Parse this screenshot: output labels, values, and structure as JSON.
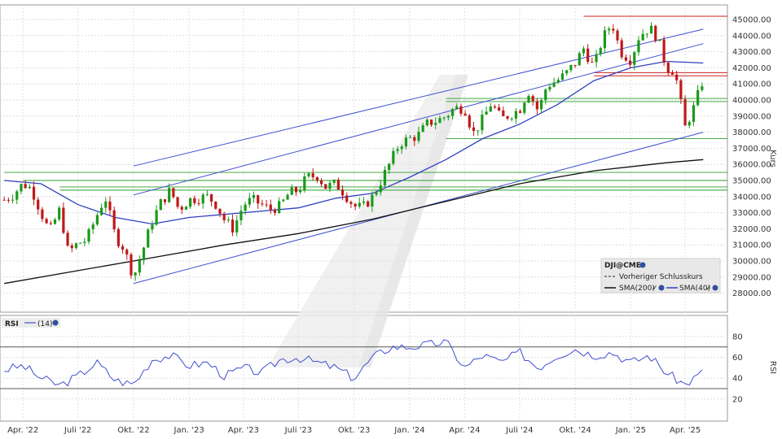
{
  "chart_data": [
    {
      "type": "candlestick",
      "ylabel": "Kurs",
      "ylim": [
        28000,
        45500
      ],
      "y_ticks": [
        "45000.00",
        "44000.00",
        "43000.00",
        "42000.00",
        "41000.00",
        "40000.00",
        "39000.00",
        "38000.00",
        "37000.00",
        "36000.00",
        "35000.00",
        "34000.00",
        "33000.00",
        "32000.00",
        "31000.00",
        "30000.00",
        "29000.00",
        "28000.00"
      ],
      "y_tick_values": [
        45000,
        44000,
        43000,
        42000,
        41000,
        40000,
        39000,
        38000,
        37000,
        36000,
        35000,
        34000,
        33000,
        32000,
        31000,
        30000,
        29000,
        28000
      ],
      "x_ticks": [
        "Apr. '22",
        "Juli '22",
        "Okt. '22",
        "Jan. '23",
        "Apr. '23",
        "Juli '23",
        "Okt. '23",
        "Jan. '24",
        "Apr. '24",
        "Juli '24",
        "Okt. '24",
        "Jan. '25",
        "Apr. '25"
      ],
      "x_tick_dates": [
        "2022-04",
        "2022-07",
        "2022-10",
        "2023-01",
        "2023-04",
        "2023-07",
        "2023-10",
        "2024-01",
        "2024-04",
        "2024-07",
        "2024-10",
        "2025-01",
        "2025-04"
      ],
      "close_series": [
        [
          "2022-03-01",
          33800
        ],
        [
          "2022-03-15",
          34100
        ],
        [
          "2022-04-01",
          34800
        ],
        [
          "2022-04-15",
          34500
        ],
        [
          "2022-05-01",
          33000
        ],
        [
          "2022-05-15",
          31800
        ],
        [
          "2022-06-01",
          33200
        ],
        [
          "2022-06-15",
          30500
        ],
        [
          "2022-07-01",
          31100
        ],
        [
          "2022-07-15",
          31300
        ],
        [
          "2022-08-01",
          32800
        ],
        [
          "2022-08-15",
          34000
        ],
        [
          "2022-09-01",
          31500
        ],
        [
          "2022-09-15",
          30800
        ],
        [
          "2022-10-01",
          29000
        ],
        [
          "2022-10-15",
          30500
        ],
        [
          "2022-11-01",
          32500
        ],
        [
          "2022-11-15",
          33600
        ],
        [
          "2022-12-01",
          34400
        ],
        [
          "2022-12-15",
          33200
        ],
        [
          "2023-01-01",
          33800
        ],
        [
          "2023-01-15",
          33900
        ],
        [
          "2023-02-01",
          34000
        ],
        [
          "2023-02-15",
          33500
        ],
        [
          "2023-03-01",
          32500
        ],
        [
          "2023-03-15",
          32000
        ],
        [
          "2023-04-01",
          33500
        ],
        [
          "2023-04-15",
          33800
        ],
        [
          "2023-05-01",
          33500
        ],
        [
          "2023-05-15",
          33200
        ],
        [
          "2023-06-01",
          33400
        ],
        [
          "2023-06-15",
          34200
        ],
        [
          "2023-07-01",
          34400
        ],
        [
          "2023-07-15",
          35200
        ],
        [
          "2023-08-01",
          35300
        ],
        [
          "2023-08-15",
          34600
        ],
        [
          "2023-09-01",
          34800
        ],
        [
          "2023-09-15",
          34200
        ],
        [
          "2023-10-01",
          33400
        ],
        [
          "2023-10-15",
          33300
        ],
        [
          "2023-11-01",
          34000
        ],
        [
          "2023-11-15",
          35000
        ],
        [
          "2023-12-01",
          36200
        ],
        [
          "2023-12-15",
          37300
        ],
        [
          "2024-01-01",
          37600
        ],
        [
          "2024-01-15",
          37800
        ],
        [
          "2024-02-01",
          38600
        ],
        [
          "2024-02-15",
          38700
        ],
        [
          "2024-03-01",
          39000
        ],
        [
          "2024-03-15",
          39500
        ],
        [
          "2024-04-01",
          39500
        ],
        [
          "2024-04-15",
          37900
        ],
        [
          "2024-05-01",
          38800
        ],
        [
          "2024-05-15",
          39800
        ],
        [
          "2024-06-01",
          38800
        ],
        [
          "2024-06-15",
          39100
        ],
        [
          "2024-07-01",
          39400
        ],
        [
          "2024-07-15",
          40600
        ],
        [
          "2024-08-01",
          39300
        ],
        [
          "2024-08-15",
          40900
        ],
        [
          "2024-09-01",
          41200
        ],
        [
          "2024-09-15",
          41600
        ],
        [
          "2024-10-01",
          42300
        ],
        [
          "2024-10-15",
          43200
        ],
        [
          "2024-11-01",
          42000
        ],
        [
          "2024-11-15",
          43800
        ],
        [
          "2024-12-01",
          44800
        ],
        [
          "2024-12-15",
          43000
        ],
        [
          "2025-01-01",
          42500
        ],
        [
          "2025-01-15",
          44000
        ],
        [
          "2025-02-01",
          44500
        ],
        [
          "2025-02-15",
          43800
        ],
        [
          "2025-03-01",
          42000
        ],
        [
          "2025-03-15",
          41800
        ],
        [
          "2025-04-01",
          38300
        ],
        [
          "2025-04-15",
          39500
        ],
        [
          "2025-05-01",
          41300
        ]
      ],
      "overlays": [
        {
          "name": "SMA(200)",
          "color": "#111111",
          "points": [
            [
              "2022-03-01",
              28600
            ],
            [
              "2022-07-01",
              29400
            ],
            [
              "2022-11-01",
              30200
            ],
            [
              "2023-03-01",
              31000
            ],
            [
              "2023-07-01",
              31700
            ],
            [
              "2023-11-01",
              32600
            ],
            [
              "2024-03-01",
              33700
            ],
            [
              "2024-07-01",
              34800
            ],
            [
              "2024-11-01",
              35600
            ],
            [
              "2025-03-01",
              36100
            ],
            [
              "2025-05-01",
              36300
            ]
          ]
        },
        {
          "name": "SMA(40)",
          "color": "#3040c0",
          "points": [
            [
              "2022-03-01",
              35000
            ],
            [
              "2022-05-01",
              34800
            ],
            [
              "2022-07-01",
              33500
            ],
            [
              "2022-09-01",
              32700
            ],
            [
              "2022-11-01",
              32300
            ],
            [
              "2023-01-01",
              32700
            ],
            [
              "2023-04-01",
              33000
            ],
            [
              "2023-07-01",
              33300
            ],
            [
              "2023-09-01",
              33900
            ],
            [
              "2023-11-01",
              34200
            ],
            [
              "2024-01-01",
              35200
            ],
            [
              "2024-03-01",
              36300
            ],
            [
              "2024-05-01",
              37600
            ],
            [
              "2024-07-01",
              38500
            ],
            [
              "2024-09-01",
              39700
            ],
            [
              "2024-11-01",
              41200
            ],
            [
              "2025-01-01",
              42000
            ],
            [
              "2025-03-01",
              42400
            ],
            [
              "2025-05-01",
              42300
            ]
          ]
        }
      ],
      "trend_lines": [
        {
          "color": "#3f4fd0",
          "from": [
            "2022-10-01",
            35900
          ],
          "to": [
            "2025-05-01",
            44400
          ]
        },
        {
          "color": "#3f4fd0",
          "from": [
            "2022-10-01",
            34100
          ],
          "to": [
            "2025-05-01",
            43500
          ]
        },
        {
          "color": "#3f4fd0",
          "from": [
            "2022-10-01",
            28600
          ],
          "to": [
            "2025-05-01",
            38000
          ]
        }
      ],
      "support_lines_green": [
        {
          "value": 35500,
          "from": "2022-03-01"
        },
        {
          "value": 35000,
          "from": "2022-04-01"
        },
        {
          "value": 34600,
          "from": "2022-06-01"
        },
        {
          "value": 34400,
          "from": "2022-06-01"
        },
        {
          "value": 40100,
          "from": "2024-03-01"
        },
        {
          "value": 39900,
          "from": "2024-03-01"
        },
        {
          "value": 37600,
          "from": "2024-03-01"
        }
      ],
      "resistance_lines_red": [
        {
          "value": 45200,
          "from": "2024-10-15"
        },
        {
          "value": 41700,
          "from": "2024-11-01"
        },
        {
          "value": 41500,
          "from": "2024-11-01"
        }
      ],
      "legend": {
        "title": "DJI@CME",
        "items": [
          "Vorheriger Schlusskurs",
          "SMA(200)",
          "SMA(40)"
        ]
      }
    },
    {
      "type": "line",
      "ylabel": "RSI",
      "series_label": "RSI",
      "period_label": "(14)",
      "ylim": [
        10,
        90
      ],
      "y_ticks": [
        "80",
        "60",
        "40",
        "20"
      ],
      "y_tick_values": [
        80,
        60,
        40,
        20
      ],
      "bands": [
        70,
        30
      ],
      "values": [
        [
          [
            "2022-03-01",
            48
          ],
          [
            "2022-04-01",
            52
          ],
          [
            "2022-05-01",
            40
          ],
          [
            "2022-06-01",
            33
          ],
          [
            "2022-07-01",
            42
          ],
          [
            "2022-08-01",
            55
          ],
          [
            "2022-09-01",
            38
          ],
          [
            "2022-10-01",
            34
          ],
          [
            "2022-11-01",
            58
          ],
          [
            "2022-12-01",
            62
          ],
          [
            "2023-01-01",
            52
          ],
          [
            "2023-02-01",
            55
          ],
          [
            "2023-03-01",
            42
          ],
          [
            "2023-04-01",
            50
          ],
          [
            "2023-05-01",
            45
          ],
          [
            "2023-06-01",
            58
          ],
          [
            "2023-07-01",
            60
          ],
          [
            "2023-08-01",
            55
          ],
          [
            "2023-09-01",
            50
          ],
          [
            "2023-10-01",
            40
          ],
          [
            "2023-11-01",
            60
          ],
          [
            "2023-12-01",
            70
          ],
          [
            "2024-01-01",
            70
          ],
          [
            "2024-02-01",
            72
          ],
          [
            "2024-03-01",
            75
          ],
          [
            "2024-04-01",
            50
          ],
          [
            "2024-05-01",
            62
          ],
          [
            "2024-06-01",
            55
          ],
          [
            "2024-07-01",
            65
          ],
          [
            "2024-08-01",
            50
          ],
          [
            "2024-09-01",
            62
          ],
          [
            "2024-10-01",
            68
          ],
          [
            "2024-11-01",
            62
          ],
          [
            "2024-12-01",
            65
          ],
          [
            "2025-01-01",
            55
          ],
          [
            "2025-02-01",
            62
          ],
          [
            "2025-03-01",
            45
          ],
          [
            "2025-04-01",
            34
          ],
          [
            "2025-05-01",
            46
          ]
        ]
      ]
    }
  ],
  "colors": {
    "up": "#1a9a1a",
    "down": "#c01818",
    "support": "#2e9e2e",
    "resistance": "#cc1f1f",
    "trend": "#3f4fd0",
    "sma40": "#3040c0",
    "sma200": "#111111",
    "rsi": "#3f4fd0"
  }
}
